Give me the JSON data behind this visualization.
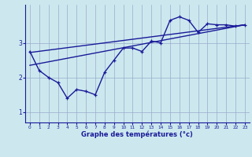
{
  "xlabel": "Graphe des températures (°c)",
  "bg_color": "#cce8ee",
  "grid_color": "#99aacc",
  "line_color": "#1a1a99",
  "xlim": [
    -0.5,
    23.5
  ],
  "ylim": [
    0.7,
    4.1
  ],
  "yticks": [
    1,
    2,
    3
  ],
  "xticks": [
    0,
    1,
    2,
    3,
    4,
    5,
    6,
    7,
    8,
    9,
    10,
    11,
    12,
    13,
    14,
    15,
    16,
    17,
    18,
    19,
    20,
    21,
    22,
    23
  ],
  "hourly_x": [
    0,
    1,
    2,
    3,
    4,
    5,
    6,
    7,
    8,
    9,
    10,
    11,
    12,
    13,
    14,
    15,
    16,
    17,
    18,
    19,
    20,
    21,
    22,
    23
  ],
  "hourly_y": [
    2.75,
    2.2,
    2.0,
    1.85,
    1.4,
    1.65,
    1.6,
    1.5,
    2.15,
    2.5,
    2.85,
    2.85,
    2.75,
    3.05,
    3.0,
    3.65,
    3.75,
    3.65,
    3.3,
    3.55,
    3.52,
    3.52,
    3.48,
    3.52
  ],
  "trend1_x": [
    0,
    23
  ],
  "trend1_y": [
    2.35,
    3.52
  ],
  "trend2_x": [
    0,
    23
  ],
  "trend2_y": [
    2.72,
    3.52
  ]
}
